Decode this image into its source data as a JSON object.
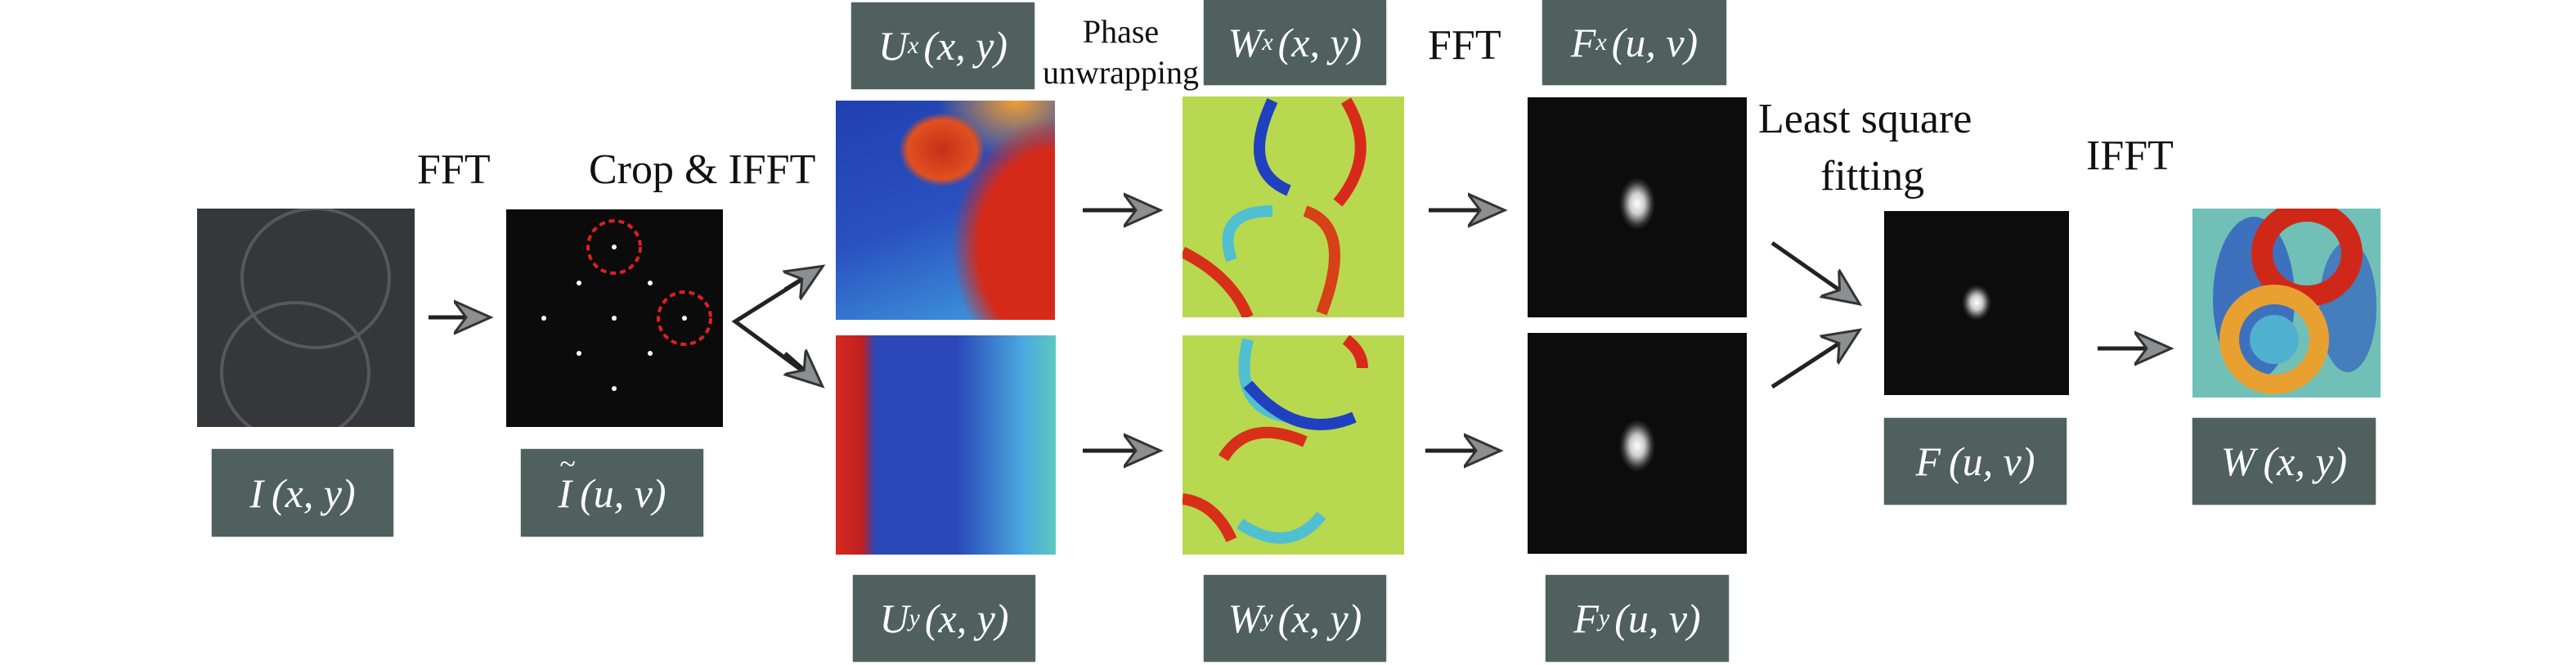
{
  "steps": {
    "fft1": "FFT",
    "crop_ifft": "Crop & IFFT",
    "phase_unwrapping_line1": "Phase",
    "phase_unwrapping_line2": "unwrapping",
    "fft2": "FFT",
    "least_square_line1": "Least square",
    "least_square_line2": "fitting",
    "ifft": "IFFT"
  },
  "labels": {
    "I": {
      "main": "I",
      "sub": "",
      "args": "(x, y)"
    },
    "It": {
      "main": "I",
      "sub": "",
      "args": "(u, v)"
    },
    "Ux": {
      "main": "U",
      "sub": "x",
      "args": "(x, y)"
    },
    "Uy": {
      "main": "U",
      "sub": "y",
      "args": "(x, y)"
    },
    "Wx": {
      "main": "W",
      "sub": "x",
      "args": "(x, y)"
    },
    "Wy": {
      "main": "W",
      "sub": "y",
      "args": "(x, y)"
    },
    "Fx": {
      "main": "F",
      "sub": "x",
      "args": "(u, v)"
    },
    "Fy": {
      "main": "F",
      "sub": "y",
      "args": "(u, v)"
    },
    "F": {
      "main": "F",
      "sub": "",
      "args": "(u, v)"
    },
    "W": {
      "main": "W",
      "sub": "",
      "args": "(x, y)"
    }
  },
  "colors": {
    "label_box": "#4f605f",
    "crop_circle": "#e02020",
    "arrow_head": "#8c8f92"
  }
}
